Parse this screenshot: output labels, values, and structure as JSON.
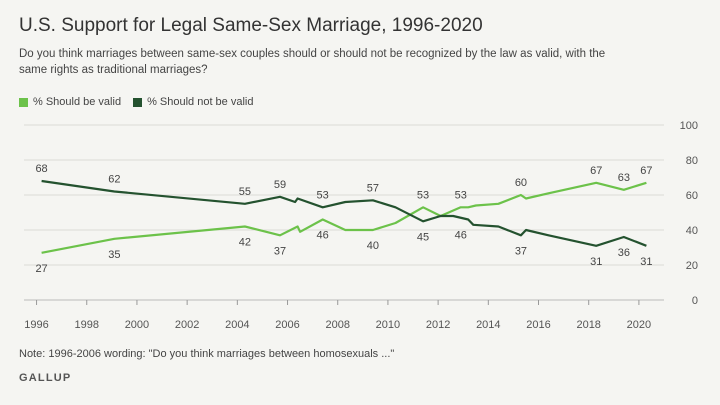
{
  "title": "U.S. Support for Legal Same-Sex Marriage, 1996-2020",
  "subtitle": "Do you think marriages between same-sex couples should or should not be recognized by the law as valid, with the same rights as traditional marriages?",
  "note": "Note: 1996-2006 wording: \"Do you think marriages between homosexuals ...\"",
  "brand": "GALLUP",
  "chart_data": {
    "type": "line",
    "title": "U.S. Support for Legal Same-Sex Marriage, 1996-2020",
    "xlabel": "",
    "ylabel": "",
    "xlim": [
      1995.5,
      2021
    ],
    "ylim": [
      0,
      100
    ],
    "x_ticks": [
      1996,
      1998,
      2000,
      2002,
      2004,
      2006,
      2008,
      2010,
      2012,
      2014,
      2016,
      2018,
      2020
    ],
    "y_ticks": [
      0,
      20,
      40,
      60,
      80,
      100
    ],
    "grid": true,
    "legend_position": "top-left",
    "series": [
      {
        "name": "% Should be valid",
        "color": "#6cc24a",
        "points": [
          [
            1996.2,
            27
          ],
          [
            1999.1,
            35
          ],
          [
            2004.3,
            42
          ],
          [
            2005.7,
            37
          ],
          [
            2006.4,
            42
          ],
          [
            2006.5,
            39
          ],
          [
            2007.4,
            46
          ],
          [
            2008.3,
            40
          ],
          [
            2009.4,
            40
          ],
          [
            2010.3,
            44
          ],
          [
            2011.4,
            53
          ],
          [
            2012.1,
            48
          ],
          [
            2012.9,
            53
          ],
          [
            2013.2,
            53
          ],
          [
            2013.5,
            54
          ],
          [
            2014.4,
            55
          ],
          [
            2015.3,
            60
          ],
          [
            2015.5,
            58
          ],
          [
            2016.4,
            61
          ],
          [
            2018.3,
            67
          ],
          [
            2019.4,
            63
          ],
          [
            2020.3,
            67
          ]
        ],
        "labels": [
          {
            "x": 1996.2,
            "y": 27,
            "text": "27",
            "pos": "below"
          },
          {
            "x": 1999.1,
            "y": 35,
            "text": "35",
            "pos": "below"
          },
          {
            "x": 2004.3,
            "y": 42,
            "text": "42",
            "pos": "below"
          },
          {
            "x": 2005.7,
            "y": 37,
            "text": "37",
            "pos": "below"
          },
          {
            "x": 2007.4,
            "y": 46,
            "text": "46",
            "pos": "below"
          },
          {
            "x": 2009.4,
            "y": 40,
            "text": "40",
            "pos": "below"
          },
          {
            "x": 2011.4,
            "y": 53,
            "text": "53",
            "pos": "above"
          },
          {
            "x": 2012.9,
            "y": 53,
            "text": "53",
            "pos": "above"
          },
          {
            "x": 2015.3,
            "y": 60,
            "text": "60",
            "pos": "above"
          },
          {
            "x": 2018.3,
            "y": 67,
            "text": "67",
            "pos": "above"
          },
          {
            "x": 2019.4,
            "y": 63,
            "text": "63",
            "pos": "above"
          },
          {
            "x": 2020.3,
            "y": 67,
            "text": "67",
            "pos": "above"
          }
        ]
      },
      {
        "name": "% Should not be valid",
        "color": "#24522f",
        "points": [
          [
            1996.2,
            68
          ],
          [
            1999.1,
            62
          ],
          [
            2004.3,
            55
          ],
          [
            2005.7,
            59
          ],
          [
            2006.3,
            56
          ],
          [
            2006.4,
            58
          ],
          [
            2007.4,
            53
          ],
          [
            2008.3,
            56
          ],
          [
            2009.4,
            57
          ],
          [
            2010.3,
            53
          ],
          [
            2011.4,
            45
          ],
          [
            2012.1,
            48
          ],
          [
            2012.6,
            48
          ],
          [
            2013.2,
            46
          ],
          [
            2013.4,
            43
          ],
          [
            2014.4,
            42
          ],
          [
            2015.3,
            37
          ],
          [
            2015.5,
            40
          ],
          [
            2016.4,
            37
          ],
          [
            2018.3,
            31
          ],
          [
            2019.4,
            36
          ],
          [
            2020.3,
            31
          ]
        ],
        "labels": [
          {
            "x": 1996.2,
            "y": 68,
            "text": "68",
            "pos": "above"
          },
          {
            "x": 1999.1,
            "y": 62,
            "text": "62",
            "pos": "above"
          },
          {
            "x": 2004.3,
            "y": 55,
            "text": "55",
            "pos": "above"
          },
          {
            "x": 2005.7,
            "y": 59,
            "text": "59",
            "pos": "above"
          },
          {
            "x": 2007.4,
            "y": 53,
            "text": "53",
            "pos": "above"
          },
          {
            "x": 2009.4,
            "y": 57,
            "text": "57",
            "pos": "above"
          },
          {
            "x": 2011.4,
            "y": 45,
            "text": "45",
            "pos": "below"
          },
          {
            "x": 2012.9,
            "y": 46,
            "text": "46",
            "pos": "below"
          },
          {
            "x": 2015.3,
            "y": 37,
            "text": "37",
            "pos": "below"
          },
          {
            "x": 2018.3,
            "y": 31,
            "text": "31",
            "pos": "below"
          },
          {
            "x": 2019.4,
            "y": 36,
            "text": "36",
            "pos": "below"
          },
          {
            "x": 2020.3,
            "y": 31,
            "text": "31",
            "pos": "below"
          }
        ]
      }
    ]
  }
}
